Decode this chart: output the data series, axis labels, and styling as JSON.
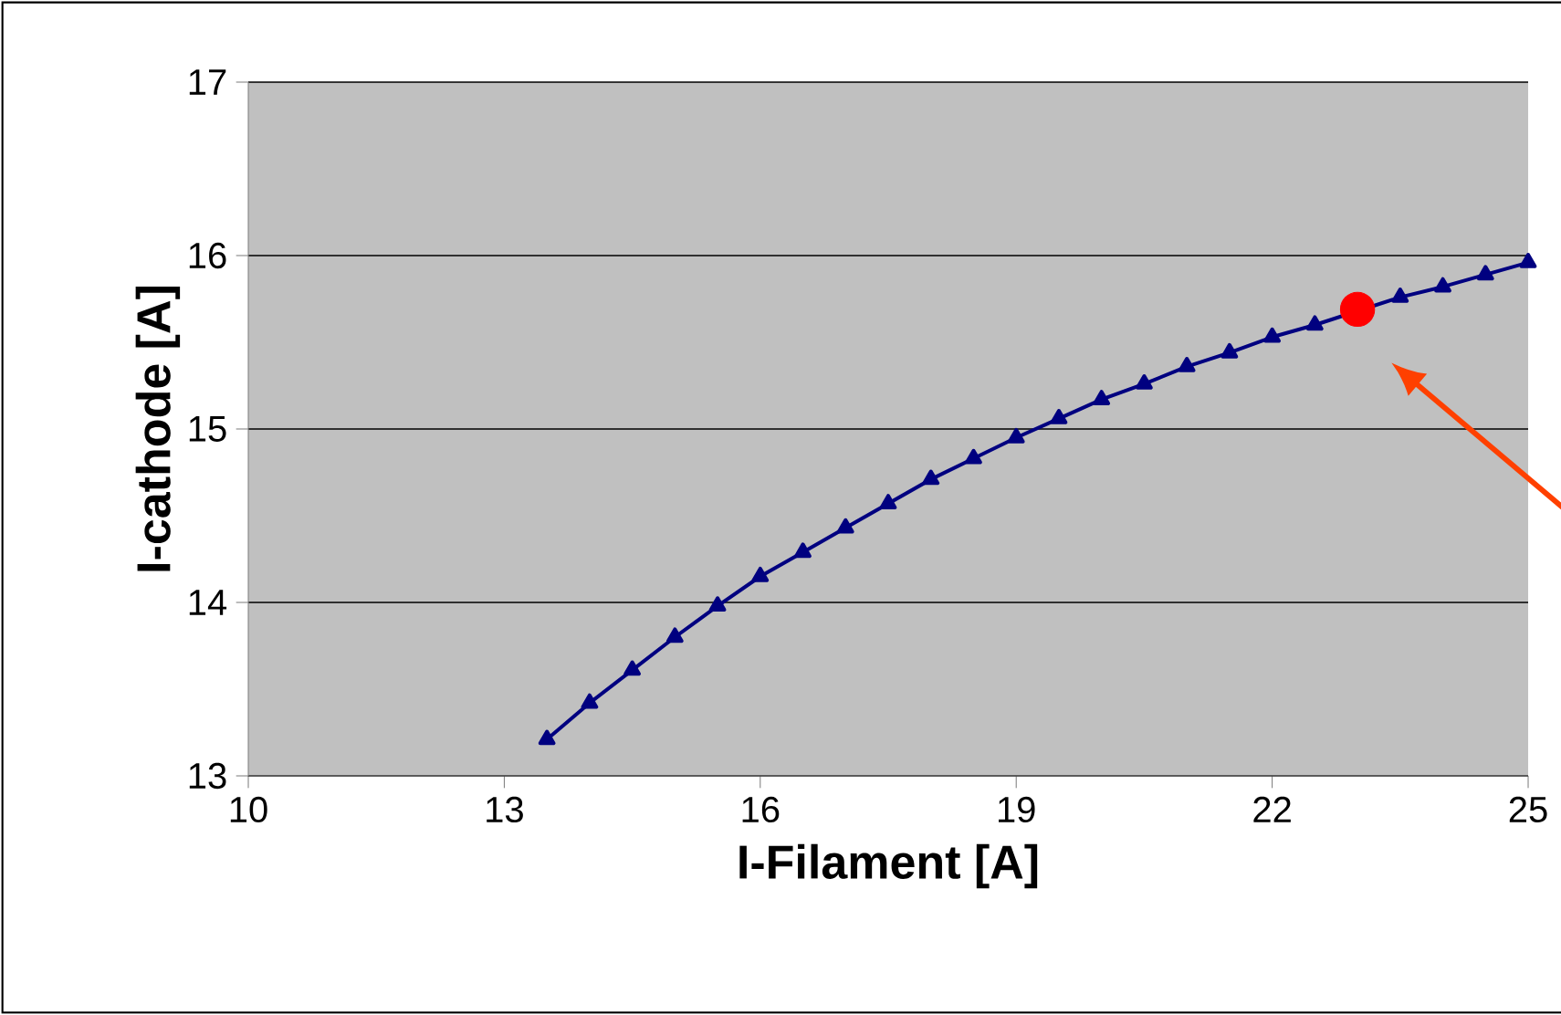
{
  "chart_data": {
    "type": "line",
    "xlabel": "I-Filament [A]",
    "ylabel": "I-cathode [A]",
    "xlim": [
      10,
      25
    ],
    "xticks": [
      10,
      13,
      16,
      19,
      22,
      25
    ],
    "ylim": [
      13,
      17
    ],
    "yticks": [
      13,
      14,
      15,
      16,
      17
    ],
    "grid": "y",
    "marker": "triangle",
    "line_style": "solid",
    "series": [
      {
        "color": "#000080",
        "x": [
          13.5,
          14,
          14.5,
          15,
          15.5,
          16,
          16.5,
          17,
          17.5,
          18,
          18.5,
          19,
          19.5,
          20,
          20.5,
          21,
          21.5,
          22,
          22.5,
          23.5,
          24,
          24.5,
          25
        ],
        "values": [
          13.21,
          13.42,
          13.61,
          13.8,
          13.98,
          14.15,
          14.29,
          14.43,
          14.57,
          14.71,
          14.83,
          14.95,
          15.06,
          15.17,
          15.26,
          15.36,
          15.44,
          15.53,
          15.6,
          15.76,
          15.82,
          15.89,
          15.96
        ]
      },
      {
        "type": "scatter",
        "marker": "circle",
        "color": "#ff0000",
        "x": [
          23
        ],
        "values": [
          15.69
        ]
      }
    ]
  }
}
